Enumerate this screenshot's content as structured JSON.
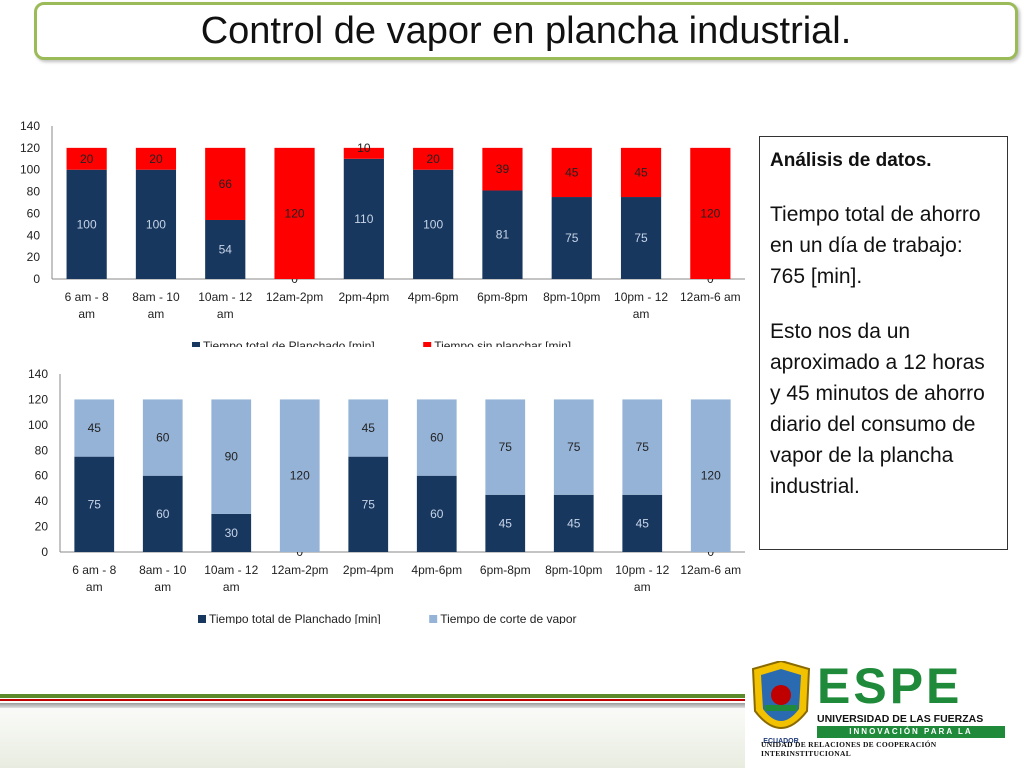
{
  "title": "Control de vapor en plancha industrial.",
  "chart_data": [
    {
      "type": "bar",
      "stacked": true,
      "categories": [
        "6 am - 8 am",
        "8am - 10 am",
        "10am - 12 am",
        "12am-2pm",
        "2pm-4pm",
        "4pm-6pm",
        "6pm-8pm",
        "8pm-10pm",
        "10pm - 12 am",
        "12am-6 am"
      ],
      "series": [
        {
          "name": "Tiempo total de Planchado [min]",
          "values": [
            100,
            100,
            54,
            0,
            110,
            100,
            81,
            75,
            75,
            0
          ],
          "color": "#17375e"
        },
        {
          "name": "Tiempo sin planchar [min]",
          "values": [
            20,
            20,
            66,
            120,
            10,
            20,
            39,
            45,
            45,
            120
          ],
          "color": "#ff0000"
        }
      ],
      "ylim": [
        0,
        140
      ],
      "yticks": [
        0,
        20,
        40,
        60,
        80,
        100,
        120,
        140
      ],
      "legend_position": "bottom",
      "grid": false
    },
    {
      "type": "bar",
      "stacked": true,
      "categories": [
        "6 am - 8 am",
        "8am - 10 am",
        "10am - 12 am",
        "12am-2pm",
        "2pm-4pm",
        "4pm-6pm",
        "6pm-8pm",
        "8pm-10pm",
        "10pm - 12 am",
        "12am-6 am"
      ],
      "series": [
        {
          "name": "Tiempo total de Planchado [min]",
          "values": [
            75,
            60,
            30,
            0,
            75,
            60,
            45,
            45,
            45,
            0
          ],
          "color": "#17375e"
        },
        {
          "name": "Tiempo de corte de vapor",
          "values": [
            45,
            60,
            90,
            120,
            45,
            60,
            75,
            75,
            75,
            120
          ],
          "color": "#95b3d7"
        }
      ],
      "ylim": [
        0,
        140
      ],
      "yticks": [
        0,
        20,
        40,
        60,
        80,
        100,
        120,
        140
      ],
      "legend_position": "bottom",
      "grid": false
    }
  ],
  "analysis": {
    "heading": "Análisis de datos.",
    "paragraph1": "Tiempo total de ahorro en un día de trabajo: 765 [min].",
    "paragraph2": "Esto nos da un aproximado a 12 horas y 45 minutos de ahorro diario del consumo de vapor de la plancha industrial."
  },
  "logo": {
    "name": "ESPE",
    "university": "UNIVERSIDAD DE LAS FUERZAS ARMADAS",
    "motto": "INNOVACIÓN PARA LA EXCELENCIA",
    "unit": "UNIDAD DE RELACIONES DE COOPERACIÓN INTERINSTITUCIONAL",
    "seal_text": "ECUADOR",
    "colors": {
      "green": "#1e8a3a",
      "stripe_green": "#5a8a2a",
      "stripe_red": "#c00000"
    }
  }
}
